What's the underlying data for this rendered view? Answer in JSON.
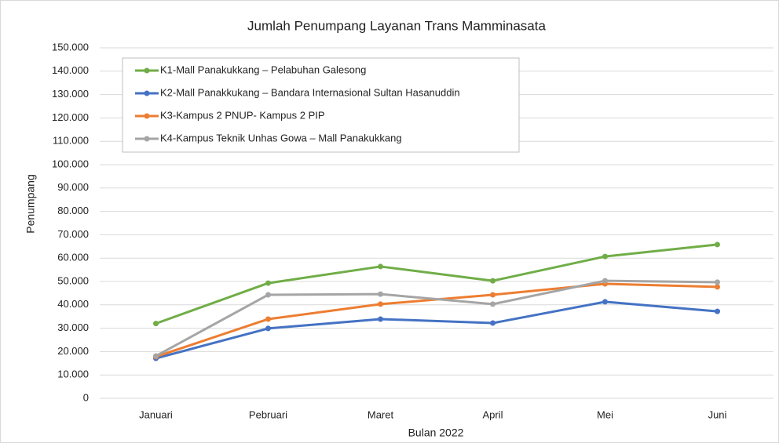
{
  "chart_data": {
    "type": "line",
    "title": "Jumlah Penumpang Layanan Trans Mamminasata",
    "x_label": "Bulan 2022",
    "y_label": "Penumpang",
    "categories": [
      "Januari",
      "Pebruari",
      "Maret",
      "April",
      "Mei",
      "Juni"
    ],
    "series": [
      {
        "name": "K1-Mall Panakukkang – Pelabuhan Galesong",
        "color": "#70ad47",
        "values": [
          32000,
          49300,
          56400,
          50300,
          60700,
          65800
        ]
      },
      {
        "name": "K2-Mall Panakkukang – Bandara Internasional Sultan Hasanuddin",
        "color": "#4472c4",
        "values": [
          17100,
          29900,
          33900,
          32200,
          41300,
          37200
        ]
      },
      {
        "name": "K3-Kampus 2 PNUP- Kampus 2 PIP",
        "color": "#ed7d31",
        "values": [
          17800,
          33900,
          40300,
          44300,
          49000,
          47700
        ]
      },
      {
        "name": "K4-Kampus Teknik Unhas Gowa – Mall Panakukkang",
        "color": "#a5a5a5",
        "values": [
          18100,
          44300,
          44600,
          40300,
          50300,
          49700
        ]
      }
    ],
    "ylim": [
      0,
      150000
    ],
    "yticks": [
      0,
      {
        "value": 10000,
        "label": "10.000"
      },
      {
        "value": 20000,
        "label": "20.000"
      },
      {
        "value": 30000,
        "label": "30.000"
      },
      {
        "value": 40000,
        "label": "40.000"
      },
      {
        "value": 50000,
        "label": "50.000"
      },
      {
        "value": 60000,
        "label": "60.000"
      },
      {
        "value": 70000,
        "label": "70.000"
      },
      {
        "value": 80000,
        "label": "80.000"
      },
      {
        "value": 90000,
        "label": "90.000"
      },
      {
        "value": 100000,
        "label": "100.000"
      },
      {
        "value": 110000,
        "label": "110.000"
      },
      {
        "value": 120000,
        "label": "120.000"
      },
      {
        "value": 130000,
        "label": "130.000"
      },
      {
        "value": 140000,
        "label": "140.000"
      },
      {
        "value": 150000,
        "label": "150.000"
      }
    ],
    "grid": true,
    "legend": "top-left"
  }
}
